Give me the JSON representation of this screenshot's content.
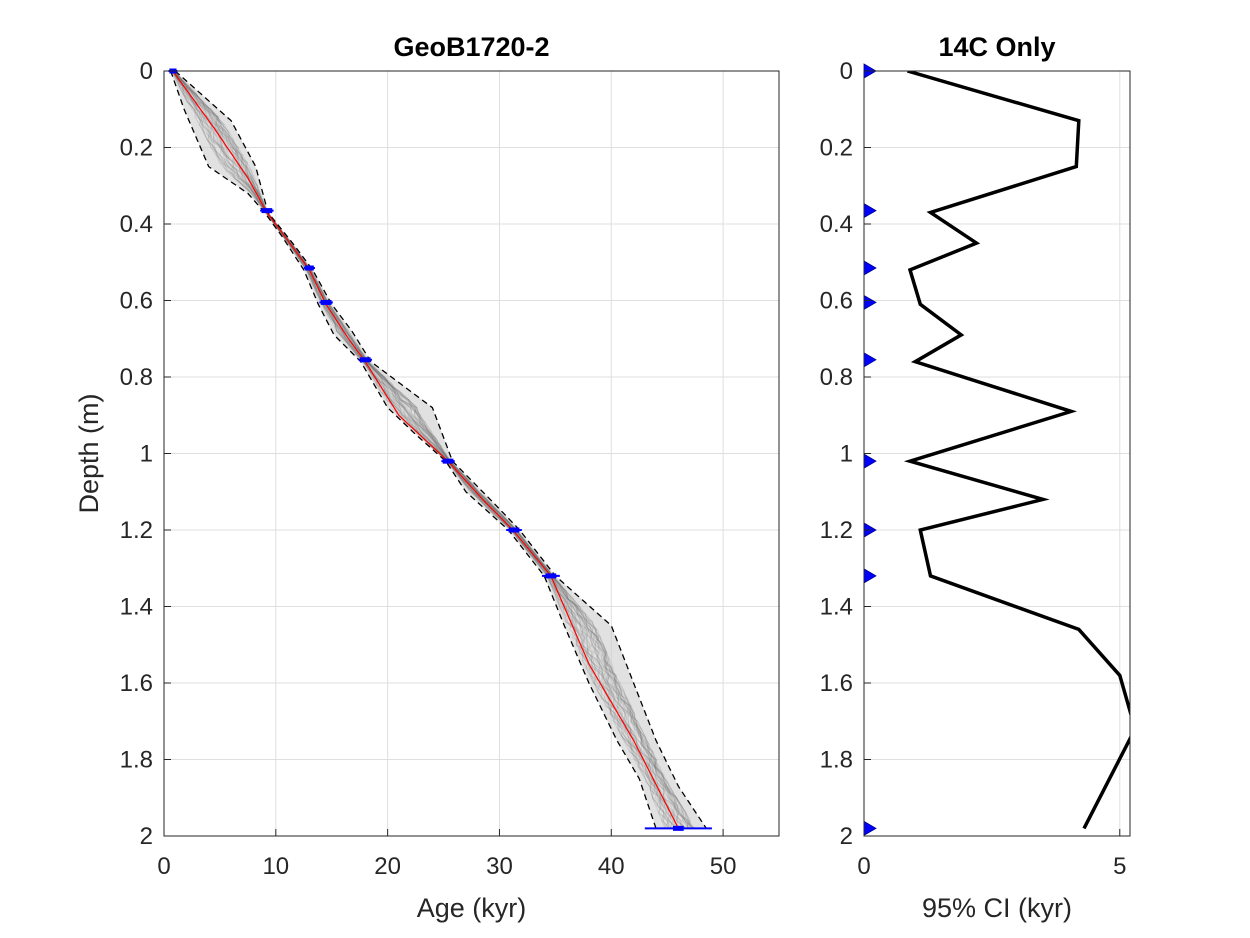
{
  "chart_data": [
    {
      "type": "line",
      "title": "GeoB1720-2",
      "xlabel": "Age (kyr)",
      "ylabel": "Depth (m)",
      "xlim": [
        0,
        55
      ],
      "ylim": [
        0,
        2
      ],
      "y_reversed": true,
      "grid": true,
      "x_ticks": [
        "0",
        "10",
        "20",
        "30",
        "40",
        "50"
      ],
      "y_ticks": [
        "0",
        "0.2",
        "0.4",
        "0.6",
        "0.8",
        "1",
        "1.2",
        "1.4",
        "1.6",
        "1.8",
        "2"
      ],
      "colors": {
        "median": "#ff0000",
        "bounds": "#000000",
        "ensemble": "#808080",
        "dates": "#0000ff"
      },
      "series": [
        {
          "role": "median",
          "points": [
            [
              0.8,
              0
            ],
            [
              4.5,
              0.15
            ],
            [
              7.5,
              0.28
            ],
            [
              9.2,
              0.37
            ],
            [
              11,
              0.44
            ],
            [
              13,
              0.52
            ],
            [
              14.5,
              0.61
            ],
            [
              16.5,
              0.7
            ],
            [
              18,
              0.76
            ],
            [
              21,
              0.9
            ],
            [
              25.4,
              1.02
            ],
            [
              28.5,
              1.12
            ],
            [
              31.2,
              1.2
            ],
            [
              34.6,
              1.32
            ],
            [
              38,
              1.55
            ],
            [
              42,
              1.75
            ],
            [
              46,
              1.98
            ]
          ]
        },
        {
          "role": "lower",
          "points": [
            [
              0.6,
              0
            ],
            [
              1.8,
              0.1
            ],
            [
              4,
              0.25
            ],
            [
              7.5,
              0.32
            ],
            [
              9,
              0.37
            ],
            [
              10.5,
              0.43
            ],
            [
              12.5,
              0.52
            ],
            [
              13.8,
              0.61
            ],
            [
              15.2,
              0.69
            ],
            [
              17.6,
              0.76
            ],
            [
              20,
              0.88
            ],
            [
              22.5,
              0.95
            ],
            [
              25.2,
              1.02
            ],
            [
              27,
              1.1
            ],
            [
              30.8,
              1.2
            ],
            [
              34,
              1.32
            ],
            [
              35.8,
              1.45
            ],
            [
              38,
              1.6
            ],
            [
              40.5,
              1.75
            ],
            [
              42.5,
              1.85
            ],
            [
              44,
              1.98
            ]
          ]
        },
        {
          "role": "upper",
          "points": [
            [
              1,
              0
            ],
            [
              6,
              0.13
            ],
            [
              8.2,
              0.25
            ],
            [
              9.3,
              0.37
            ],
            [
              11.5,
              0.45
            ],
            [
              13.3,
              0.52
            ],
            [
              15,
              0.61
            ],
            [
              16.8,
              0.68
            ],
            [
              18.5,
              0.76
            ],
            [
              24,
              0.88
            ],
            [
              25.8,
              1.02
            ],
            [
              29.5,
              1.13
            ],
            [
              31.8,
              1.2
            ],
            [
              35,
              1.32
            ],
            [
              40,
              1.45
            ],
            [
              42,
              1.6
            ],
            [
              44,
              1.75
            ],
            [
              46,
              1.87
            ],
            [
              48.5,
              1.98
            ]
          ]
        }
      ],
      "dates": [
        {
          "age": 0.8,
          "depth": 0.0,
          "err": 0.4
        },
        {
          "age": 9.2,
          "depth": 0.365,
          "err": 0.6
        },
        {
          "age": 13.0,
          "depth": 0.515,
          "err": 0.5
        },
        {
          "age": 14.5,
          "depth": 0.605,
          "err": 0.6
        },
        {
          "age": 18.0,
          "depth": 0.755,
          "err": 0.6
        },
        {
          "age": 25.4,
          "depth": 1.02,
          "err": 0.6
        },
        {
          "age": 31.3,
          "depth": 1.2,
          "err": 0.7
        },
        {
          "age": 34.6,
          "depth": 1.32,
          "err": 0.8
        },
        {
          "age": 46.0,
          "depth": 1.98,
          "err": 3.0
        }
      ]
    },
    {
      "type": "line",
      "title": "14C Only",
      "xlabel": "95% CI (kyr)",
      "ylabel": "",
      "xlim": [
        0,
        5.2
      ],
      "ylim": [
        0,
        2
      ],
      "y_reversed": true,
      "grid": true,
      "x_ticks": [
        "0",
        "5"
      ],
      "y_ticks": [
        "0",
        "0.2",
        "0.4",
        "0.6",
        "0.8",
        "1",
        "1.2",
        "1.4",
        "1.6",
        "1.8",
        "2"
      ],
      "colors": {
        "line": "#000000",
        "markers": "#0000ff"
      },
      "series": [
        {
          "role": "ci",
          "points": [
            [
              0.85,
              0
            ],
            [
              4.2,
              0.13
            ],
            [
              4.15,
              0.25
            ],
            [
              1.3,
              0.37
            ],
            [
              2.2,
              0.45
            ],
            [
              0.9,
              0.52
            ],
            [
              1.1,
              0.61
            ],
            [
              1.9,
              0.69
            ],
            [
              1.0,
              0.76
            ],
            [
              4.05,
              0.89
            ],
            [
              0.9,
              1.02
            ],
            [
              3.5,
              1.12
            ],
            [
              1.1,
              1.2
            ],
            [
              1.3,
              1.32
            ],
            [
              4.2,
              1.46
            ],
            [
              5.0,
              1.58
            ],
            [
              5.3,
              1.72
            ],
            [
              4.3,
              1.98
            ]
          ]
        }
      ],
      "markers_depth": [
        0,
        0.365,
        0.515,
        0.605,
        0.755,
        1.02,
        1.2,
        1.32,
        1.98
      ]
    }
  ]
}
